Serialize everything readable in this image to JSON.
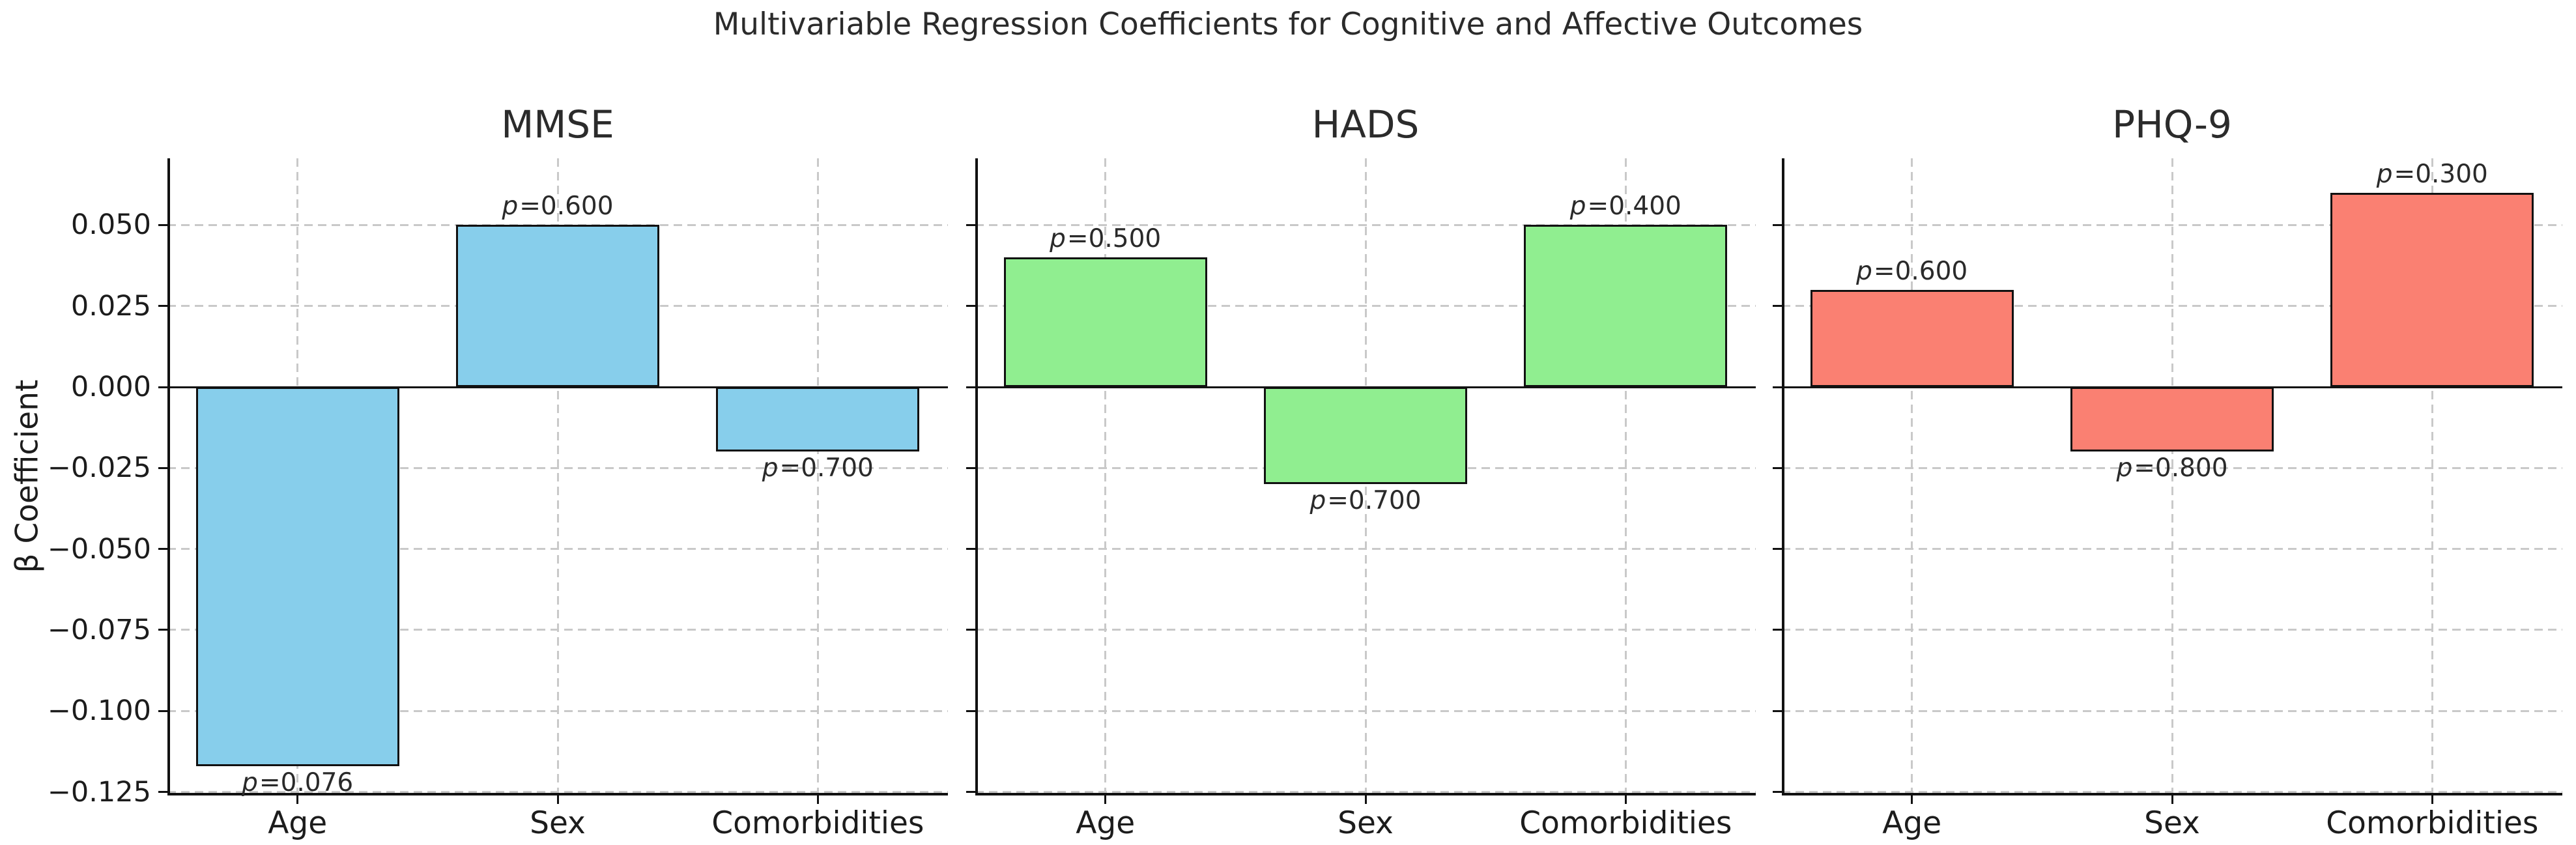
{
  "chart_data": {
    "type": "bar",
    "title": "Multivariable Regression Coefficients for Cognitive and Affective Outcomes",
    "ylabel": "β Coefficient",
    "categories": [
      "Age",
      "Sex",
      "Comorbidities"
    ],
    "ylim": [
      -0.1259,
      0.0706
    ],
    "yticks": [
      0.05,
      0.025,
      0.0,
      -0.025,
      -0.05,
      -0.075,
      -0.1,
      -0.125
    ],
    "ytick_labels": [
      "0.050",
      "0.025",
      "0.000",
      "−0.025",
      "−0.050",
      "−0.075",
      "−0.100",
      "−0.125"
    ],
    "grid": {
      "visible": true,
      "linestyle": "dashed",
      "color": "#c9c9c9"
    },
    "zero_line_color": "#111111",
    "bar_edge_color": "#111111",
    "legend": "none",
    "subplots": [
      {
        "title": "MMSE",
        "bar_color": "#87CEEB",
        "series": [
          {
            "category": "Age",
            "value": -0.117,
            "p_label": "p=0.076"
          },
          {
            "category": "Sex",
            "value": 0.05,
            "p_label": "p=0.600"
          },
          {
            "category": "Comorbidities",
            "value": -0.02,
            "p_label": "p=0.700"
          }
        ]
      },
      {
        "title": "HADS",
        "bar_color": "#90EE90",
        "series": [
          {
            "category": "Age",
            "value": 0.04,
            "p_label": "p=0.500"
          },
          {
            "category": "Sex",
            "value": -0.03,
            "p_label": "p=0.700"
          },
          {
            "category": "Comorbidities",
            "value": 0.05,
            "p_label": "p=0.400"
          }
        ]
      },
      {
        "title": "PHQ-9",
        "bar_color": "#FA8072",
        "series": [
          {
            "category": "Age",
            "value": 0.03,
            "p_label": "p=0.600"
          },
          {
            "category": "Sex",
            "value": -0.02,
            "p_label": "p=0.800"
          },
          {
            "category": "Comorbidities",
            "value": 0.06,
            "p_label": "p=0.300"
          }
        ]
      }
    ]
  }
}
